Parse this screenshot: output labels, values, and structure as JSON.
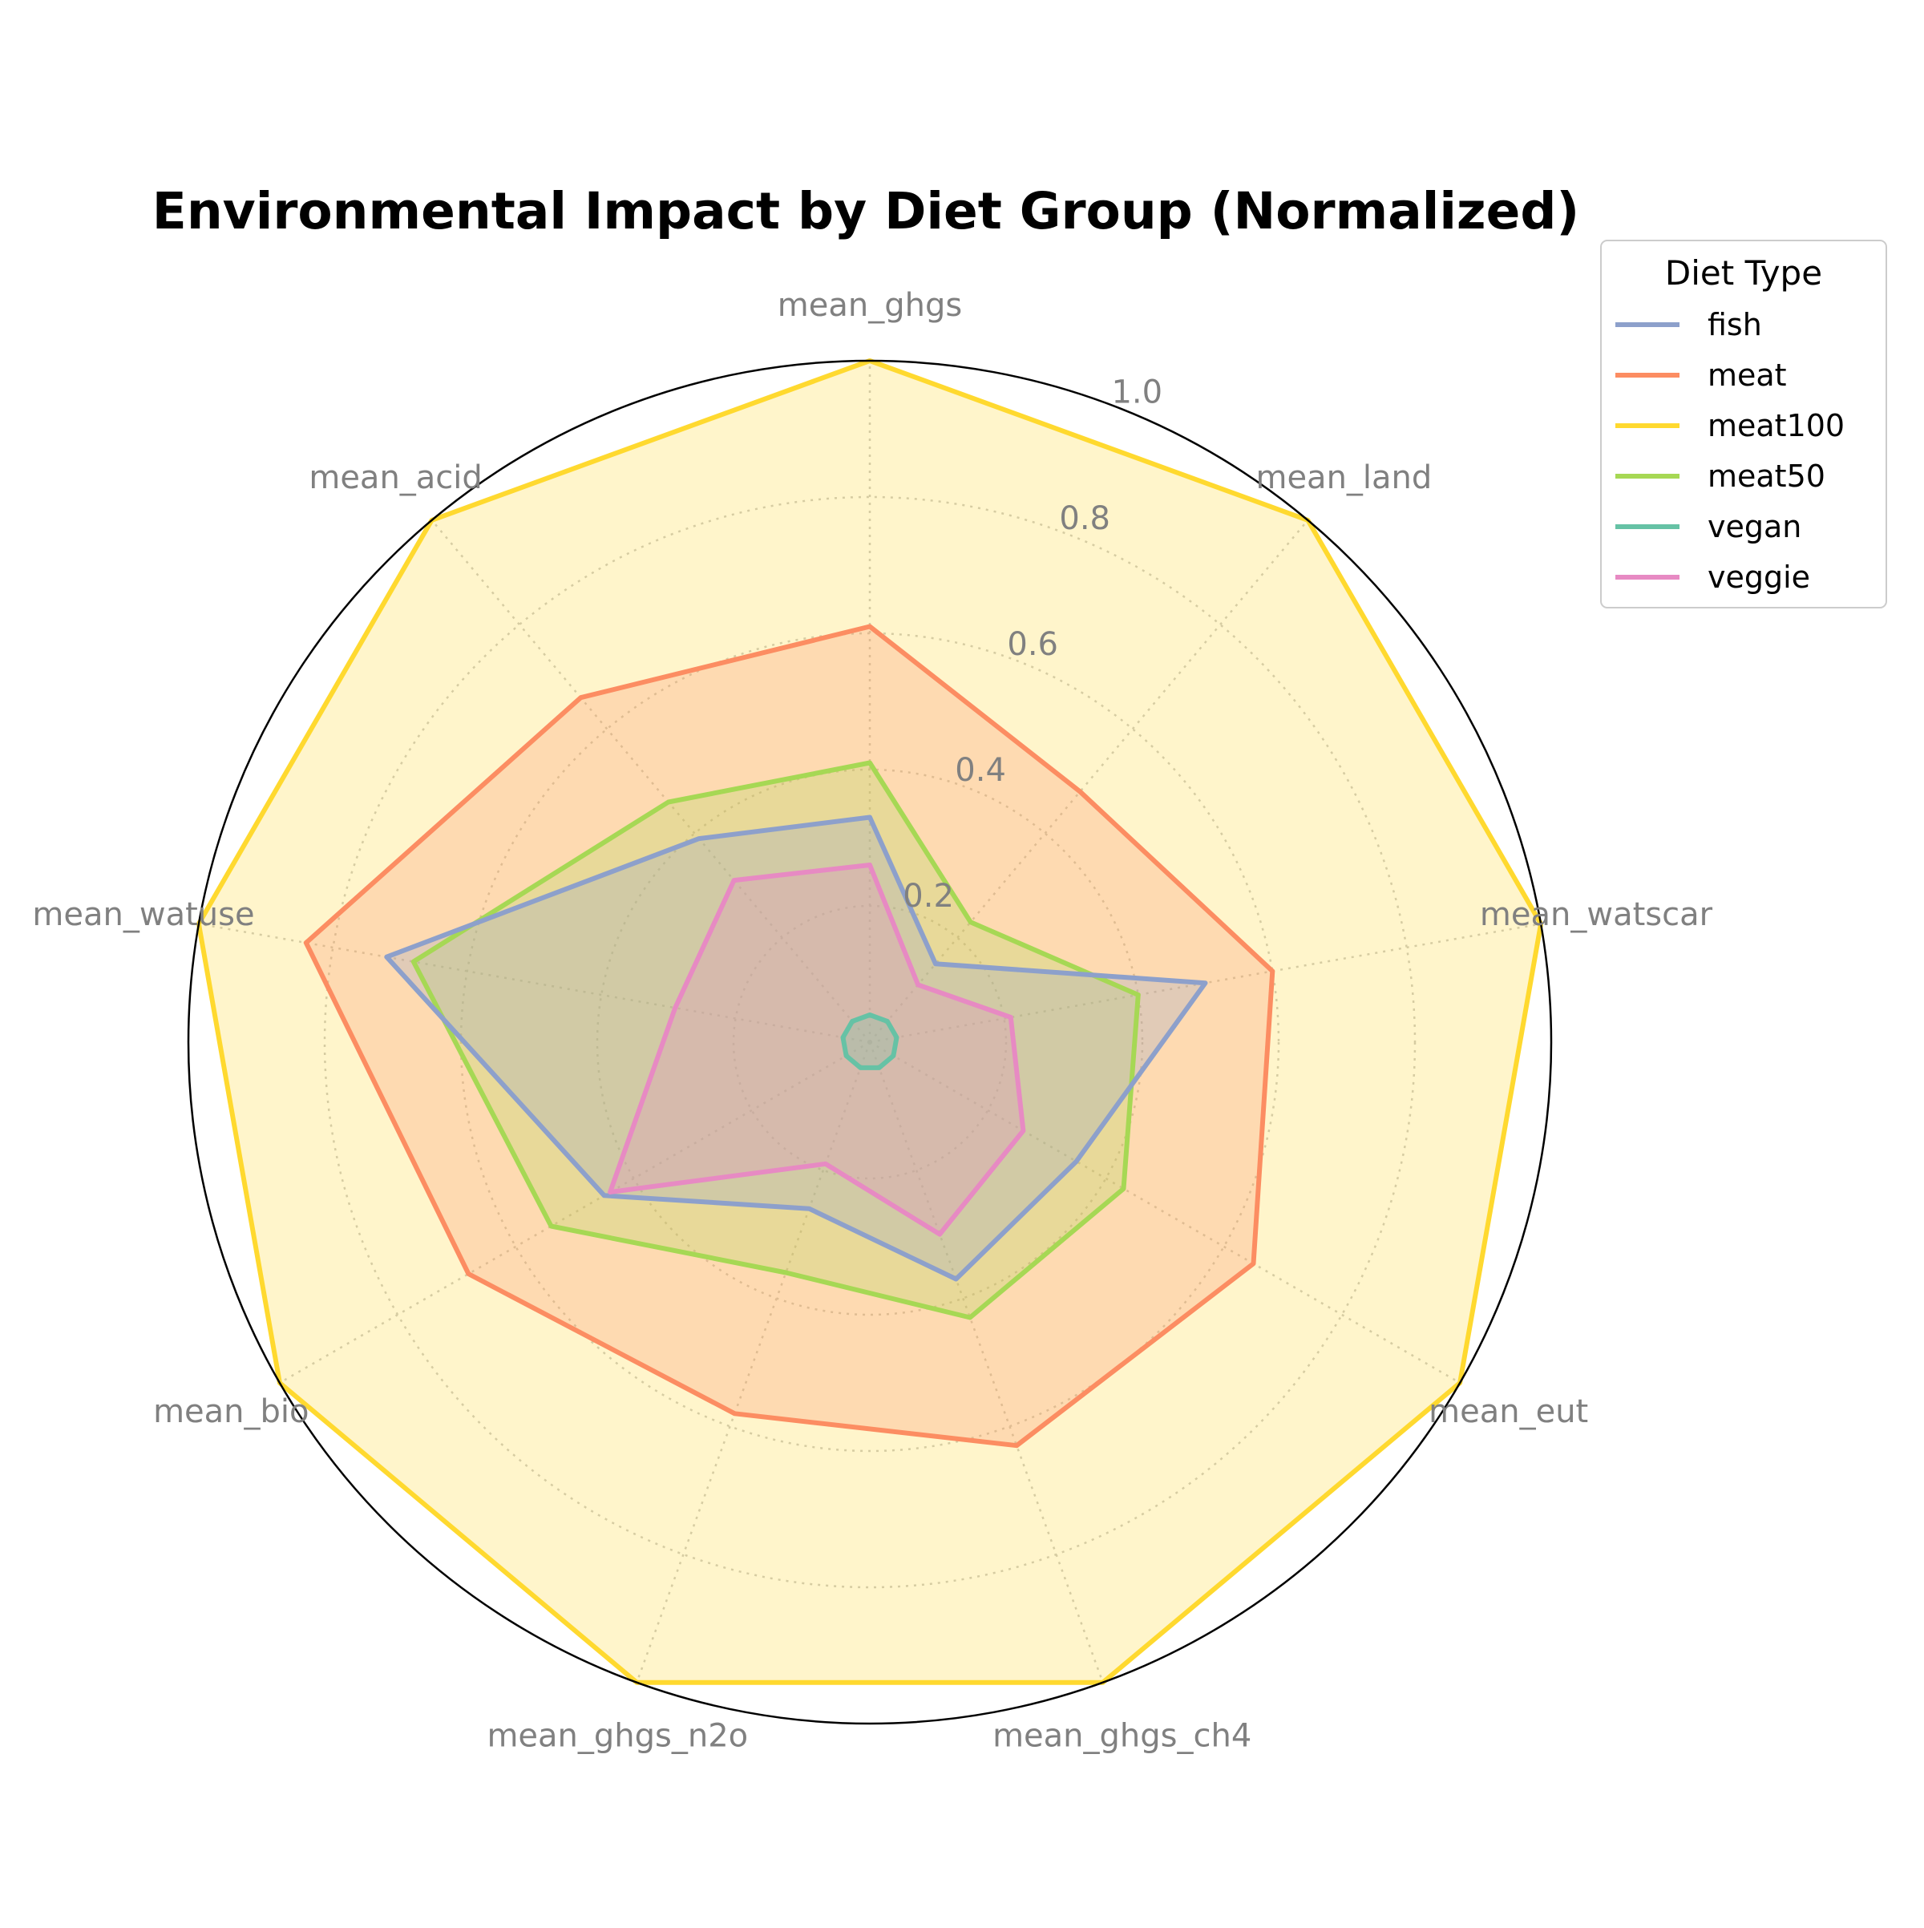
{
  "chart_data": {
    "type": "radar",
    "title": "Environmental Impact by Diet Group (Normalized)",
    "axes": [
      "mean_ghgs",
      "mean_land",
      "mean_watscar",
      "mean_eut",
      "mean_ghgs_ch4",
      "mean_ghgs_n2o",
      "mean_bio",
      "mean_watuse",
      "mean_acid"
    ],
    "r_ticks": [
      0.2,
      0.4,
      0.6,
      0.8,
      1.0
    ],
    "r_tick_labels": [
      "0.2",
      "0.4",
      "0.6",
      "0.8",
      "1.0"
    ],
    "rlim": [
      0,
      1.0
    ],
    "grid": true,
    "legend": {
      "title": "Diet Type",
      "placement": "upper right, outside plot"
    },
    "series": [
      {
        "name": "meat100",
        "color": "#ffd92f",
        "values": [
          1.0,
          1.0,
          1.0,
          1.0,
          1.0,
          1.0,
          1.0,
          1.0,
          1.0
        ]
      },
      {
        "name": "meat",
        "color": "#fc8d62",
        "values": [
          0.61,
          0.48,
          0.6,
          0.65,
          0.63,
          0.58,
          0.68,
          0.84,
          0.66
        ]
      },
      {
        "name": "meat50",
        "color": "#a6d854",
        "values": [
          0.41,
          0.23,
          0.4,
          0.43,
          0.43,
          0.36,
          0.54,
          0.68,
          0.46
        ]
      },
      {
        "name": "fish",
        "color": "#8da0cb",
        "values": [
          0.33,
          0.15,
          0.5,
          0.35,
          0.37,
          0.26,
          0.45,
          0.72,
          0.39
        ]
      },
      {
        "name": "veggie",
        "color": "#e78ac3",
        "values": [
          0.26,
          0.11,
          0.21,
          0.26,
          0.3,
          0.19,
          0.44,
          0.29,
          0.31
        ]
      },
      {
        "name": "vegan",
        "color": "#66c2a5",
        "values": [
          0.04,
          0.04,
          0.04,
          0.04,
          0.04,
          0.04,
          0.04,
          0.04,
          0.04
        ]
      }
    ],
    "legend_order": [
      "fish",
      "meat",
      "meat100",
      "meat50",
      "vegan",
      "veggie"
    ]
  }
}
